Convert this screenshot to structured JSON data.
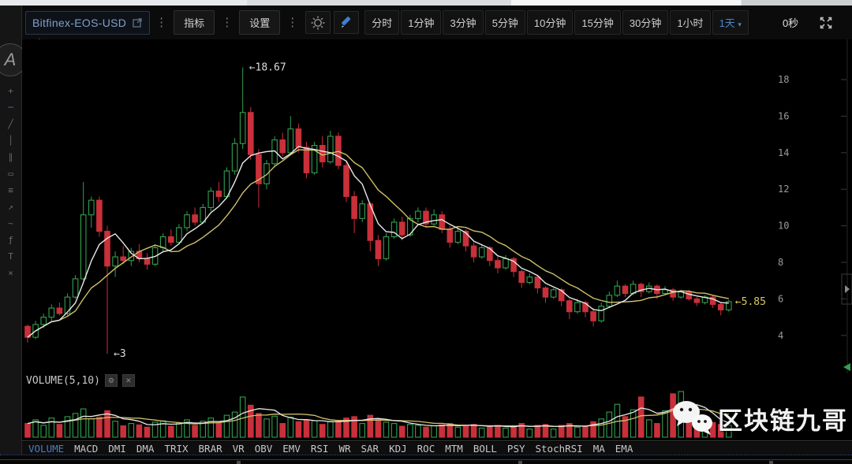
{
  "toolbar": {
    "symbol": "Bitfinex-EOS-USD",
    "indicators_button": "指标",
    "settings_button": "设置",
    "kebab_glyph": "⋮",
    "intervals": [
      "分时",
      "1分钟",
      "3分钟",
      "5分钟",
      "10分钟",
      "15分钟",
      "30分钟",
      "1小时"
    ],
    "selected_interval": "1天",
    "selected_caret": "▾",
    "countdown": "0秒"
  },
  "sidebar": {
    "logo_glyph": "A",
    "tools": [
      {
        "name": "crosshair-icon",
        "glyph": "+",
        "selected": false
      },
      {
        "name": "horizontal-line-icon",
        "glyph": "─",
        "selected": true
      },
      {
        "name": "trend-line-icon",
        "glyph": "╱",
        "selected": false
      },
      {
        "name": "vertical-line-icon",
        "glyph": "│",
        "selected": false
      },
      {
        "name": "parallel-channel-icon",
        "glyph": "∥",
        "selected": false
      },
      {
        "name": "rectangle-icon",
        "glyph": "▭",
        "selected": false
      },
      {
        "name": "triple-line-icon",
        "glyph": "≡",
        "selected": false
      },
      {
        "name": "arrow-icon",
        "glyph": "↗",
        "selected": false
      },
      {
        "name": "wave-icon",
        "glyph": "~",
        "selected": false
      },
      {
        "name": "fibonacci-icon",
        "glyph": "ƒ",
        "selected": false
      },
      {
        "name": "text-tool-icon",
        "glyph": "T",
        "selected": false
      },
      {
        "name": "eraser-icon",
        "glyph": "×",
        "selected": false
      }
    ]
  },
  "volume_header": {
    "label": "VOLUME(5,10)"
  },
  "indicator_tabs": {
    "selected": "VOLUME",
    "items": [
      "VOLUME",
      "MACD",
      "DMI",
      "DMA",
      "TRIX",
      "BRAR",
      "VR",
      "OBV",
      "EMV",
      "RSI",
      "WR",
      "SAR",
      "KDJ",
      "ROC",
      "MTM",
      "BOLL",
      "PSY",
      "StochRSI",
      "MA",
      "EMA"
    ]
  },
  "watermark": {
    "text": "区块链九哥"
  },
  "colors": {
    "candle_up": "#31a14e",
    "candle_down": "#c9303a",
    "ma_fast": "#e8e8e8",
    "ma_slow": "#cdc06a",
    "axis_text": "#9a9a9a",
    "accent_blue": "#4a86c8",
    "annotation_white": "#dddddd",
    "annotation_yellow": "#d9c95e"
  },
  "chart_data": {
    "type": "candlestick+volume",
    "symbol": "Bitfinex-EOS-USD",
    "interval": "1天",
    "ylim": [
      1.9,
      20.2
    ],
    "y_ticks": [
      18,
      16,
      14,
      12,
      10,
      8,
      6,
      4
    ],
    "ma_periods": {
      "fast": 5,
      "slow": 10
    },
    "volume_ma_periods": {
      "fast": 5,
      "slow": 10
    },
    "legend_note": "white = MA5, yellow = MA10, green = up candle (hollow), red = down candle (filled)",
    "annotations": [
      {
        "text": "←18.67",
        "candle": 27,
        "price": 18.67,
        "color": "#dddddd"
      },
      {
        "text": "←3",
        "candle": 10,
        "price": 3.0,
        "color": "#dddddd"
      },
      {
        "text": "←5.85",
        "candle": 88,
        "price": 5.85,
        "color": "#d9c95e"
      }
    ],
    "candles_format": [
      "open",
      "high",
      "low",
      "close",
      "volume_rel"
    ],
    "candles": [
      [
        4.5,
        4.6,
        3.6,
        3.9,
        30
      ],
      [
        3.9,
        4.8,
        3.8,
        4.6,
        38
      ],
      [
        4.6,
        5.2,
        4.4,
        5.0,
        26
      ],
      [
        5.0,
        5.7,
        4.8,
        5.5,
        42
      ],
      [
        5.5,
        5.8,
        5.1,
        5.2,
        28
      ],
      [
        5.2,
        6.3,
        5.1,
        6.1,
        45
      ],
      [
        6.1,
        7.3,
        6.0,
        7.1,
        52
      ],
      [
        7.1,
        12.4,
        7.0,
        10.6,
        62
      ],
      [
        10.6,
        11.6,
        9.9,
        11.4,
        40
      ],
      [
        11.4,
        11.6,
        9.4,
        9.7,
        44
      ],
      [
        9.7,
        10.0,
        3.0,
        7.8,
        58
      ],
      [
        7.8,
        8.6,
        7.2,
        8.3,
        35
      ],
      [
        8.3,
        8.9,
        7.9,
        8.1,
        25
      ],
      [
        8.1,
        8.8,
        7.8,
        8.6,
        30
      ],
      [
        8.6,
        9.0,
        8.0,
        8.2,
        27
      ],
      [
        8.2,
        8.5,
        7.6,
        7.9,
        22
      ],
      [
        7.9,
        9.0,
        7.8,
        8.8,
        33
      ],
      [
        8.8,
        9.6,
        8.6,
        9.4,
        36
      ],
      [
        9.4,
        9.8,
        8.9,
        9.1,
        24
      ],
      [
        9.1,
        10.1,
        9.0,
        9.9,
        31
      ],
      [
        9.9,
        10.8,
        9.7,
        10.6,
        38
      ],
      [
        10.6,
        11.0,
        10.0,
        10.2,
        26
      ],
      [
        10.2,
        11.2,
        10.1,
        11.0,
        35
      ],
      [
        11.0,
        12.1,
        10.8,
        11.9,
        42
      ],
      [
        11.9,
        12.4,
        11.3,
        11.6,
        30
      ],
      [
        11.6,
        13.2,
        11.5,
        13.0,
        48
      ],
      [
        13.0,
        14.8,
        12.8,
        14.5,
        55
      ],
      [
        14.5,
        18.67,
        14.2,
        16.2,
        88
      ],
      [
        16.2,
        16.5,
        13.6,
        13.9,
        70
      ],
      [
        13.9,
        14.2,
        11.0,
        12.3,
        52
      ],
      [
        12.3,
        13.6,
        12.0,
        13.4,
        40
      ],
      [
        13.4,
        14.9,
        13.2,
        14.7,
        46
      ],
      [
        14.7,
        15.1,
        13.8,
        14.0,
        30
      ],
      [
        14.0,
        16.0,
        13.9,
        15.3,
        44
      ],
      [
        15.3,
        15.6,
        14.0,
        14.3,
        34
      ],
      [
        14.3,
        14.6,
        12.6,
        12.9,
        38
      ],
      [
        12.9,
        14.6,
        12.8,
        14.4,
        36
      ],
      [
        14.4,
        14.9,
        13.2,
        13.5,
        28
      ],
      [
        13.5,
        15.2,
        13.4,
        14.9,
        34
      ],
      [
        14.9,
        15.1,
        13.1,
        13.3,
        35
      ],
      [
        13.3,
        13.5,
        11.3,
        11.6,
        42
      ],
      [
        11.6,
        11.9,
        9.6,
        10.4,
        45
      ],
      [
        10.4,
        11.4,
        10.2,
        11.2,
        30
      ],
      [
        11.2,
        11.3,
        8.6,
        9.2,
        48
      ],
      [
        9.2,
        9.5,
        7.8,
        8.2,
        40
      ],
      [
        8.2,
        9.6,
        8.1,
        9.4,
        33
      ],
      [
        9.4,
        10.4,
        9.3,
        10.2,
        30
      ],
      [
        10.2,
        10.5,
        9.2,
        9.5,
        24
      ],
      [
        9.5,
        10.6,
        9.4,
        10.4,
        28
      ],
      [
        10.4,
        11.0,
        10.2,
        10.8,
        26
      ],
      [
        10.8,
        11.0,
        9.9,
        10.1,
        22
      ],
      [
        10.1,
        10.9,
        10.0,
        10.6,
        25
      ],
      [
        10.6,
        10.8,
        9.6,
        9.8,
        27
      ],
      [
        9.8,
        10.0,
        8.8,
        9.1,
        30
      ],
      [
        9.1,
        9.9,
        9.0,
        9.7,
        22
      ],
      [
        9.7,
        9.8,
        8.6,
        8.9,
        26
      ],
      [
        8.9,
        9.1,
        8.0,
        8.3,
        28
      ],
      [
        8.3,
        9.0,
        8.2,
        8.8,
        20
      ],
      [
        8.8,
        8.9,
        7.8,
        8.1,
        24
      ],
      [
        8.1,
        8.3,
        7.4,
        7.7,
        26
      ],
      [
        7.7,
        8.4,
        7.6,
        8.2,
        20
      ],
      [
        8.2,
        8.3,
        7.2,
        7.5,
        25
      ],
      [
        7.5,
        7.6,
        6.6,
        6.9,
        30
      ],
      [
        6.9,
        7.4,
        6.8,
        7.2,
        18
      ],
      [
        7.2,
        7.3,
        6.3,
        6.6,
        26
      ],
      [
        6.6,
        6.7,
        5.8,
        6.1,
        28
      ],
      [
        6.1,
        6.6,
        6.0,
        6.5,
        18
      ],
      [
        6.5,
        6.6,
        5.6,
        5.9,
        26
      ],
      [
        5.9,
        6.0,
        4.9,
        5.3,
        30
      ],
      [
        5.3,
        6.0,
        5.2,
        5.8,
        22
      ],
      [
        5.8,
        5.9,
        5.0,
        5.3,
        24
      ],
      [
        5.3,
        5.5,
        4.5,
        4.8,
        34
      ],
      [
        4.8,
        5.8,
        4.7,
        5.6,
        40
      ],
      [
        5.6,
        6.4,
        5.5,
        6.2,
        55
      ],
      [
        6.2,
        7.0,
        6.1,
        6.7,
        72
      ],
      [
        6.7,
        6.8,
        6.1,
        6.3,
        45
      ],
      [
        6.3,
        7.0,
        6.2,
        6.8,
        60
      ],
      [
        6.8,
        6.9,
        6.1,
        6.4,
        88
      ],
      [
        6.4,
        6.9,
        6.3,
        6.7,
        38
      ],
      [
        6.7,
        6.8,
        6.0,
        6.3,
        30
      ],
      [
        6.3,
        6.7,
        6.2,
        6.5,
        58
      ],
      [
        6.5,
        6.6,
        5.9,
        6.1,
        95
      ],
      [
        6.1,
        6.5,
        6.0,
        6.4,
        100
      ],
      [
        6.4,
        6.5,
        5.9,
        6.0,
        62
      ],
      [
        6.0,
        6.1,
        5.6,
        5.8,
        40
      ],
      [
        5.8,
        6.2,
        5.7,
        6.1,
        30
      ],
      [
        6.1,
        6.2,
        5.5,
        5.7,
        32
      ],
      [
        5.7,
        5.8,
        5.1,
        5.4,
        28
      ],
      [
        5.4,
        5.95,
        5.3,
        5.85,
        26
      ]
    ]
  }
}
